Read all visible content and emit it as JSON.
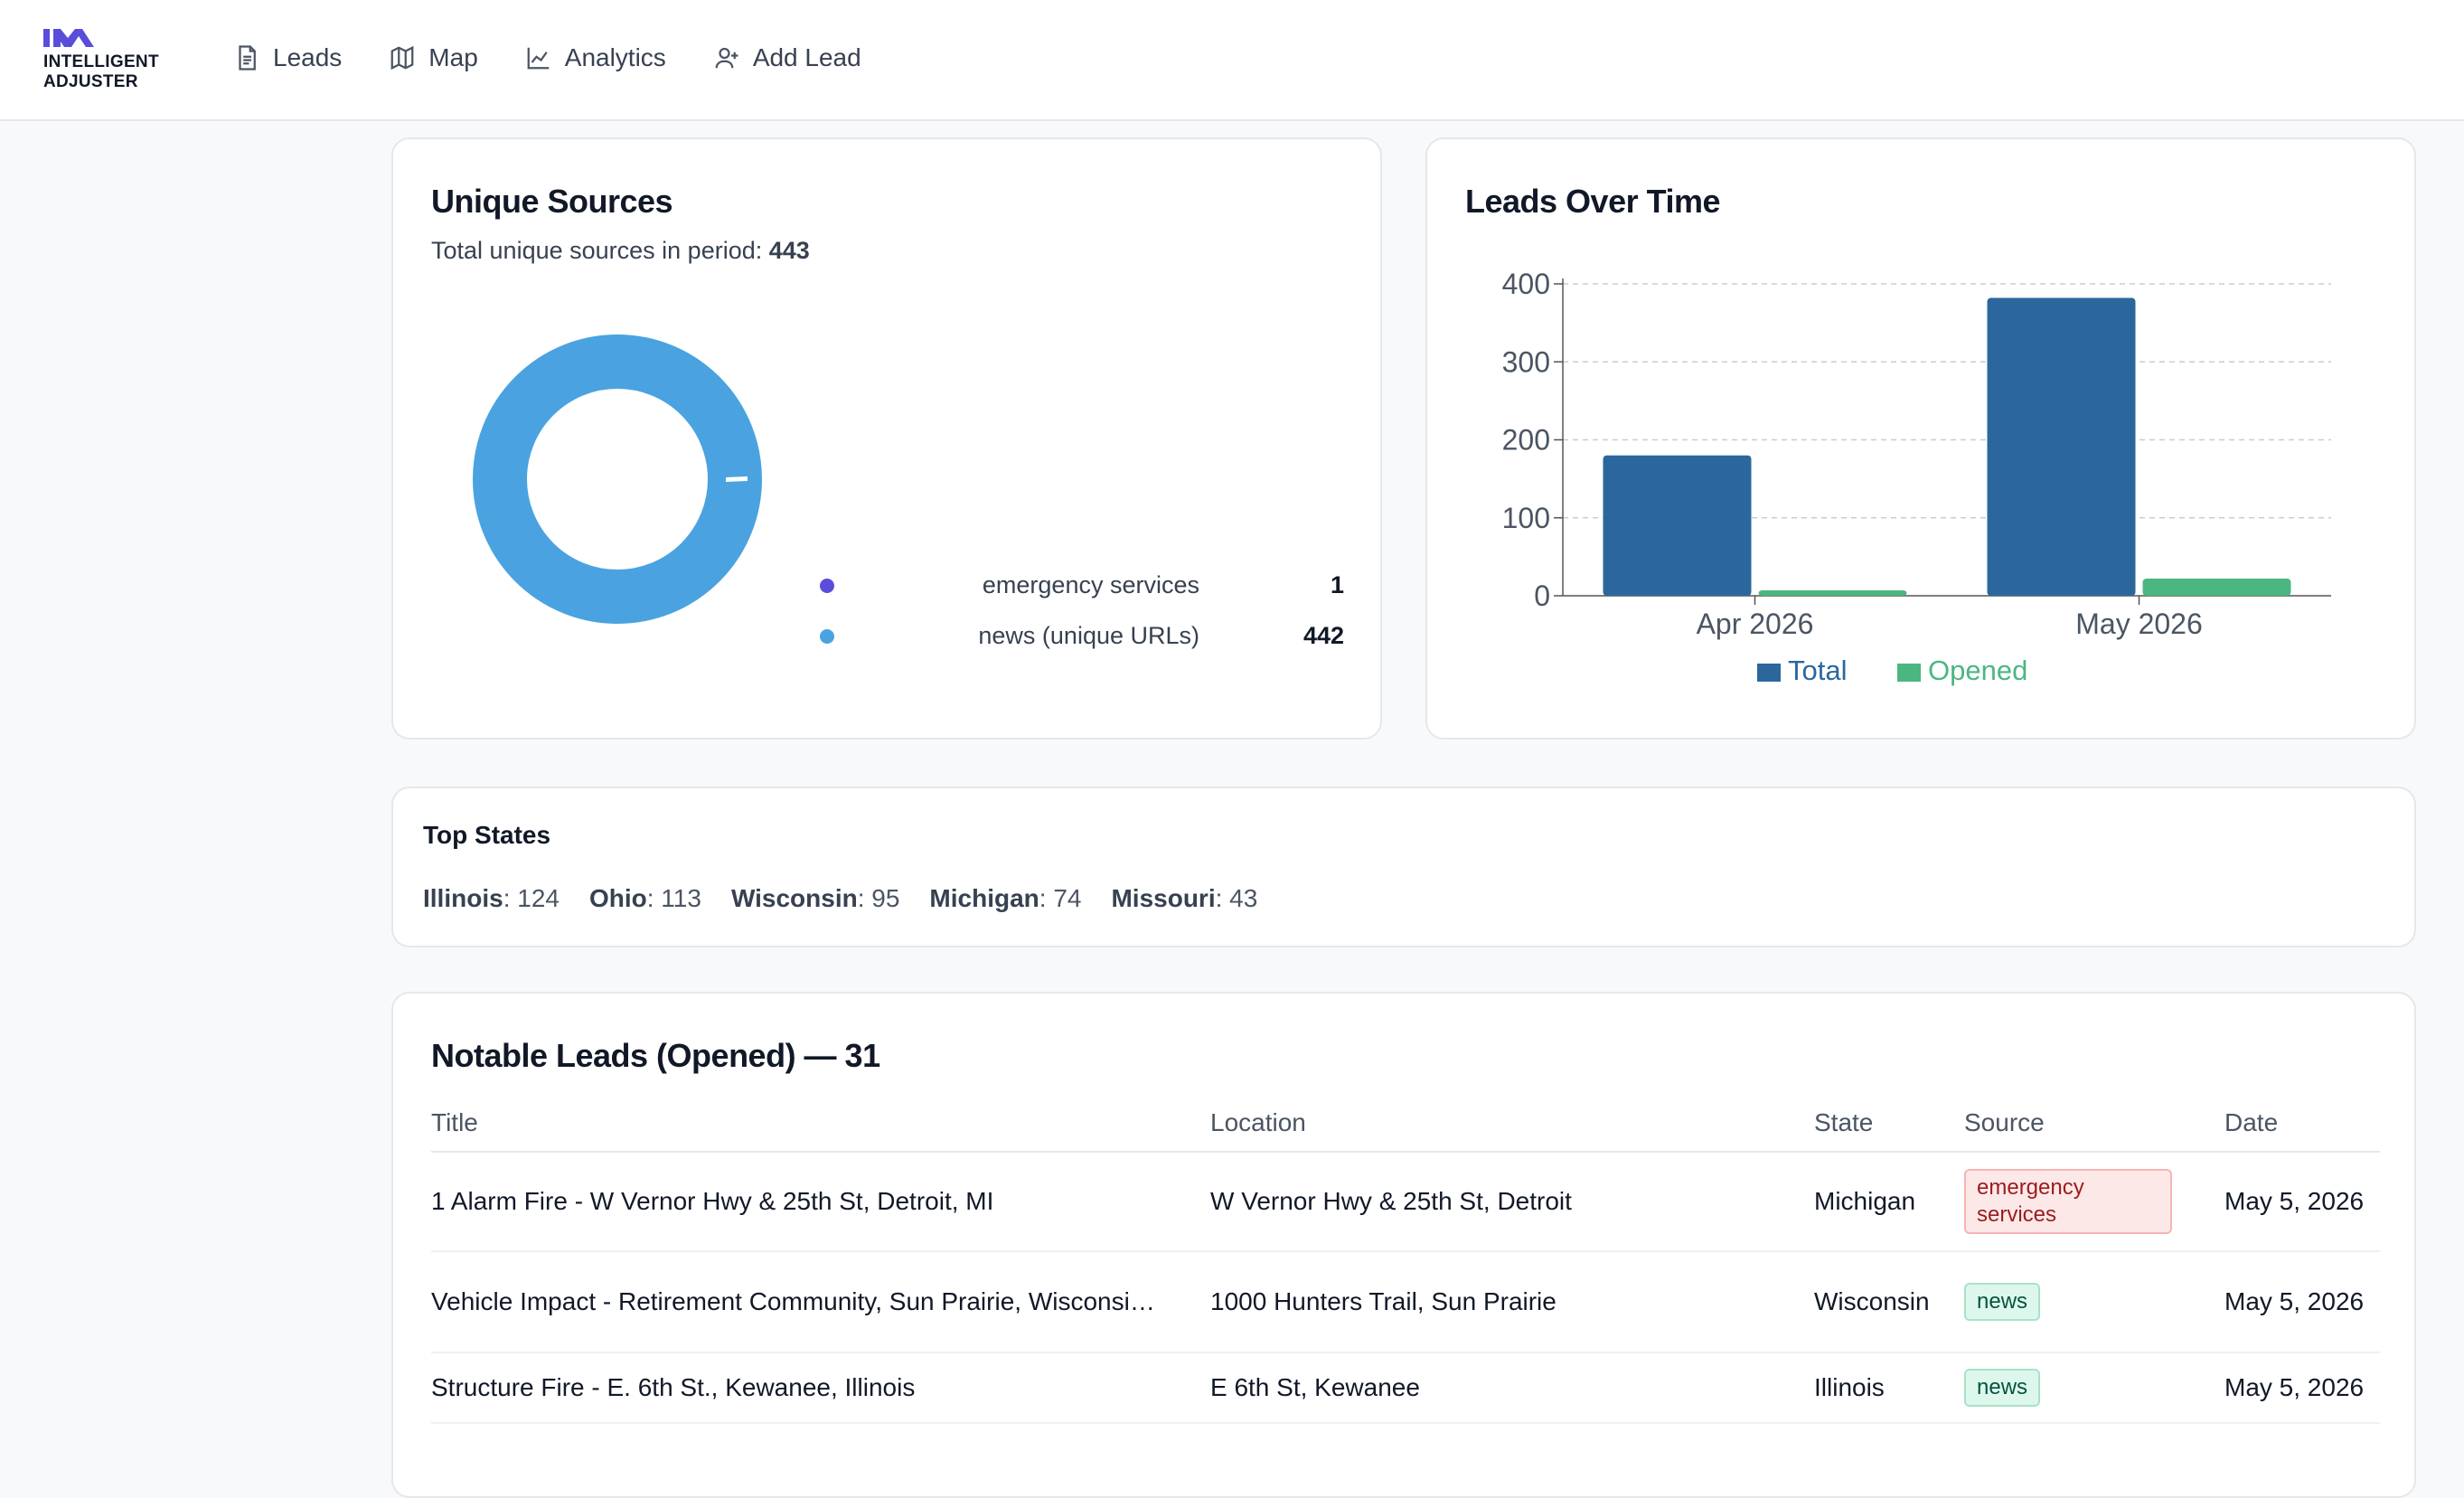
{
  "brand": {
    "line1": "INTELLIGENT",
    "line2": "ADJUSTER",
    "color": "#5a4ddb"
  },
  "nav": {
    "leads": "Leads",
    "map": "Map",
    "analytics": "Analytics",
    "add_lead": "Add Lead"
  },
  "unique_sources": {
    "title": "Unique Sources",
    "subtitle_prefix": "Total unique sources in period:",
    "total": "443",
    "items": [
      {
        "label": "emergency services",
        "value": "1",
        "color": "#5a4ddb"
      },
      {
        "label": "news (unique URLs)",
        "value": "442",
        "color": "#4aa3e0"
      }
    ]
  },
  "leads_over_time": {
    "title": "Leads Over Time"
  },
  "chart_data": {
    "type": "bar",
    "categories": [
      "Apr 2026",
      "May 2026"
    ],
    "series": [
      {
        "name": "Total",
        "values": [
          180,
          382
        ],
        "color": "#2b679d"
      },
      {
        "name": "Opened",
        "values": [
          7,
          22
        ],
        "color": "#4cb680"
      }
    ],
    "yticks": [
      "0",
      "100",
      "200",
      "300",
      "400"
    ],
    "ylim": [
      0,
      400
    ],
    "grid": true,
    "legend": "bottom"
  },
  "top_states": {
    "title": "Top States",
    "items": [
      {
        "name": "Illinois",
        "count": ": 124"
      },
      {
        "name": "Ohio",
        "count": ": 113"
      },
      {
        "name": "Wisconsin",
        "count": ": 95"
      },
      {
        "name": "Michigan",
        "count": ": 74"
      },
      {
        "name": "Missouri",
        "count": ": 43"
      }
    ]
  },
  "notable": {
    "title": "Notable Leads (Opened) — 31",
    "columns": {
      "title": "Title",
      "location": "Location",
      "state": "State",
      "source": "Source",
      "date": "Date"
    },
    "rows": [
      {
        "title": "1 Alarm Fire - W Vernor Hwy & 25th St, Detroit, MI",
        "location": "W Vernor Hwy & 25th St, Detroit",
        "state": "Michigan",
        "source": "emergency services",
        "date": "May 5, 2026"
      },
      {
        "title": "Vehicle Impact - Retirement Community, Sun Prairie, Wisconsi…",
        "location": "1000 Hunters Trail, Sun Prairie",
        "state": "Wisconsin",
        "source": "news",
        "date": "May 5, 2026"
      },
      {
        "title": "Structure Fire - E. 6th St., Kewanee, Illinois",
        "location": "E 6th St, Kewanee",
        "state": "Illinois",
        "source": "news",
        "date": "May 5, 2026"
      }
    ]
  }
}
